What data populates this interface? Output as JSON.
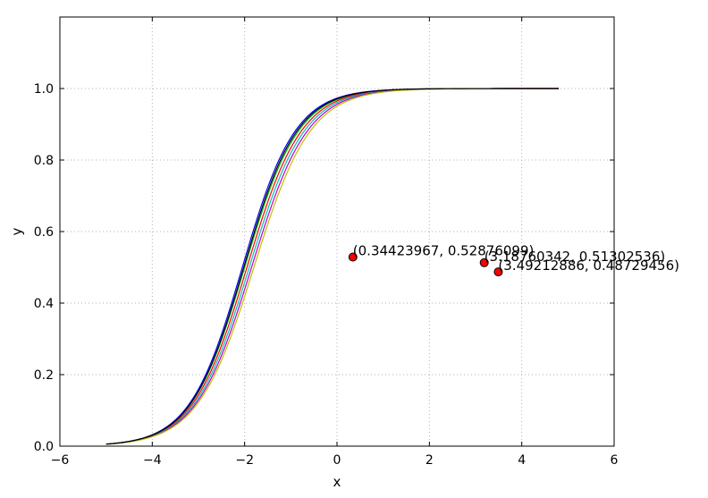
{
  "chart_data": {
    "type": "line",
    "xlabel": "x",
    "ylabel": "y",
    "xlim": [
      -6,
      6
    ],
    "ylim": [
      0,
      1.2
    ],
    "grid": true,
    "x_ticks": [
      {
        "value": -6,
        "label": "−6"
      },
      {
        "value": -4,
        "label": "−4"
      },
      {
        "value": -2,
        "label": "−2"
      },
      {
        "value": 0,
        "label": "0"
      },
      {
        "value": 2,
        "label": "2"
      },
      {
        "value": 4,
        "label": "4"
      },
      {
        "value": 6,
        "label": "6"
      }
    ],
    "y_ticks": [
      {
        "value": 0.0,
        "label": "0.0"
      },
      {
        "value": 0.2,
        "label": "0.2"
      },
      {
        "value": 0.4,
        "label": "0.4"
      },
      {
        "value": 0.6,
        "label": "0.6"
      },
      {
        "value": 0.8,
        "label": "0.8"
      },
      {
        "value": 1.0,
        "label": "1.0"
      }
    ],
    "curve_x_range": [
      -5.0,
      4.8
    ],
    "series": [
      {
        "color": "#0000ff",
        "midpoint": -2.05,
        "steepness": 1.75
      },
      {
        "color": "#00aa00",
        "midpoint": -2.0,
        "steepness": 1.72
      },
      {
        "color": "#ff0000",
        "midpoint": -1.95,
        "steepness": 1.7
      },
      {
        "color": "#00bfbf",
        "midpoint": -1.9,
        "steepness": 1.68
      },
      {
        "color": "#bf00bf",
        "midpoint": -1.85,
        "steepness": 1.66
      },
      {
        "color": "#bfbf00",
        "midpoint": -1.8,
        "steepness": 1.64
      },
      {
        "color": "#000000",
        "midpoint": -2.02,
        "steepness": 1.74
      }
    ],
    "annotated_points": [
      {
        "x": 0.34423967,
        "y": 0.52876099,
        "label": "(0.34423967, 0.52876099)"
      },
      {
        "x": 3.18760342,
        "y": 0.51302536,
        "label": "(3.18760342, 0.51302536)"
      },
      {
        "x": 3.49212886,
        "y": 0.48729456,
        "label": "(3.49212886, 0.48729456)"
      }
    ],
    "point_color": "#ff0000"
  }
}
